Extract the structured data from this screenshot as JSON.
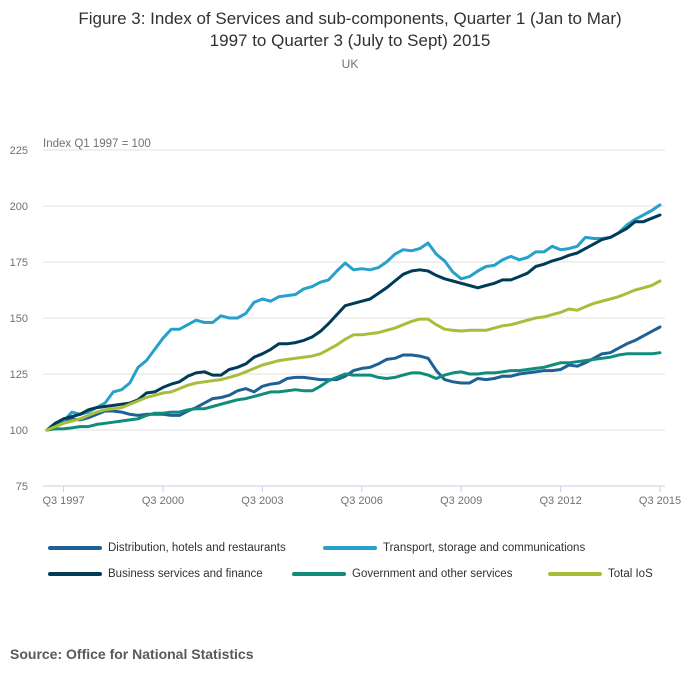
{
  "chart_data": {
    "type": "line",
    "title": "Figure 3: Index of Services and sub-components, Quarter 1 (Jan to Mar) 1997 to Quarter 3 (July to Sept) 2015",
    "title_line1": "Figure 3: Index of Services and sub-components, Quarter 1 (Jan to Mar)",
    "title_line2": "1997 to Quarter 3 (July to Sept) 2015",
    "subtitle": "UK",
    "ylabel": "Index Q1 1997 = 100",
    "xlabel": "",
    "ylim": [
      75,
      225
    ],
    "yticks": [
      "75",
      "100",
      "125",
      "150",
      "175",
      "200",
      "225"
    ],
    "x_start": "Q1 1997",
    "x_end": "Q3 2015",
    "xticks": [
      {
        "label": "Q3 1997",
        "index": 2
      },
      {
        "label": "Q3 2000",
        "index": 14
      },
      {
        "label": "Q3 2003",
        "index": 26
      },
      {
        "label": "Q3 2006",
        "index": 38
      },
      {
        "label": "Q3 2009",
        "index": 50
      },
      {
        "label": "Q3 2012",
        "index": 62
      },
      {
        "label": "Q3 2015",
        "index": 74
      }
    ],
    "grid": true,
    "legend_position": "bottom",
    "series": [
      {
        "name": "Distribution, hotels and restaurants",
        "color": "#206095",
        "values": [
          100,
          103,
          104.5,
          105,
          104.5,
          105.5,
          107,
          108.5,
          108.5,
          108,
          107,
          106.5,
          107,
          107,
          107,
          106.5,
          106.5,
          108.5,
          110,
          112,
          114,
          114.5,
          115.5,
          117.5,
          118.5,
          117,
          119.5,
          120.5,
          121,
          123,
          123.5,
          123.5,
          123,
          122.5,
          122.5,
          122.5,
          124,
          126.5,
          127.5,
          128,
          129.5,
          131.5,
          132,
          133.5,
          133.5,
          133,
          132,
          126.5,
          122.5,
          121.5,
          121,
          121,
          123,
          122.5,
          123,
          124,
          124,
          125,
          125.5,
          126,
          126.5,
          126.5,
          127,
          129,
          128.5,
          130,
          132,
          134,
          134.5,
          136.5,
          138.5,
          140,
          142,
          144,
          146
        ]
      },
      {
        "name": "Transport, storage and communications",
        "color": "#27a0cc",
        "values": [
          100,
          102,
          104,
          108,
          107,
          108,
          110,
          112,
          117,
          118,
          121,
          128,
          131,
          136,
          141,
          145,
          145,
          147,
          149,
          148,
          148,
          151,
          150,
          150,
          152,
          157,
          158.5,
          157.5,
          159.5,
          160,
          160.5,
          163,
          164,
          166,
          167,
          171,
          174.5,
          171.5,
          172,
          171.5,
          172.5,
          175,
          178.5,
          180.5,
          180,
          181,
          183.5,
          178.5,
          175.5,
          170.5,
          167.5,
          168.5,
          171,
          173,
          173.5,
          176,
          177.5,
          176,
          177,
          179.5,
          179.5,
          182,
          180.5,
          181,
          182,
          186,
          185.5,
          185.5,
          186,
          188,
          191.5,
          194,
          196,
          198,
          200.5
        ]
      },
      {
        "name": "Business services and finance",
        "color": "#003c57",
        "values": [
          100,
          103,
          105,
          106,
          107,
          109,
          110,
          110.5,
          111,
          111.5,
          112,
          113.5,
          116.5,
          117,
          119,
          120.5,
          121.5,
          124,
          125.5,
          126,
          124.5,
          124.5,
          127,
          128,
          129.5,
          132.5,
          134,
          136,
          138.5,
          138.5,
          139,
          140,
          141.5,
          144,
          147.5,
          151.5,
          155.5,
          156.5,
          157.5,
          158.5,
          161,
          163.5,
          166.5,
          169.5,
          171,
          171.5,
          171,
          169,
          167.5,
          166.5,
          165.5,
          164.5,
          163.5,
          164.5,
          165.5,
          167,
          167,
          168.5,
          170,
          173,
          174,
          175.5,
          176.5,
          178,
          179,
          181,
          183,
          185,
          186,
          188,
          190,
          193,
          193,
          194.5,
          196
        ]
      },
      {
        "name": "Government and other services",
        "color": "#118c7b",
        "values": [
          100,
          100.5,
          100.5,
          101,
          101.5,
          101.5,
          102.5,
          103,
          103.5,
          104,
          104.5,
          105,
          106.5,
          107.5,
          107.5,
          108,
          108,
          109,
          109.5,
          109.5,
          110.5,
          111.5,
          112.5,
          113.5,
          114,
          115,
          116,
          117,
          117,
          117.5,
          118,
          117.5,
          117.5,
          119.5,
          122,
          123.5,
          125,
          124.5,
          124.5,
          124.5,
          123.5,
          123,
          123.5,
          124.5,
          125.5,
          125.5,
          124.5,
          123,
          124.5,
          125.5,
          126,
          125,
          125,
          125.5,
          125.5,
          126,
          126.5,
          126.5,
          127,
          127.5,
          128,
          129,
          130,
          130,
          130.5,
          131,
          131.5,
          132,
          132.5,
          133.5,
          134,
          134,
          134,
          134,
          134.5
        ]
      },
      {
        "name": "Total IoS",
        "color": "#a8bd3a",
        "values": [
          100,
          101.5,
          103,
          104,
          105,
          106.5,
          108,
          109,
          109.5,
          110,
          111.5,
          113,
          114.5,
          115.5,
          116.5,
          117,
          118.5,
          120,
          121,
          121.5,
          122,
          122.5,
          123.5,
          124.5,
          126,
          127.5,
          129,
          130,
          131,
          131.5,
          132,
          132.5,
          133,
          134,
          136,
          138,
          140.5,
          142.5,
          142.5,
          143,
          143.5,
          144.5,
          145.5,
          147,
          148.5,
          149.5,
          149.5,
          147,
          145,
          144.5,
          144.2,
          144.5,
          144.5,
          144.5,
          145.5,
          146.5,
          147,
          148,
          149,
          150,
          150.5,
          151.5,
          152.5,
          154,
          153.5,
          155,
          156.5,
          157.5,
          158.5,
          159.5,
          161,
          162.5,
          163.5,
          164.5,
          166.5
        ]
      }
    ]
  },
  "source": "Source: Office for National Statistics"
}
